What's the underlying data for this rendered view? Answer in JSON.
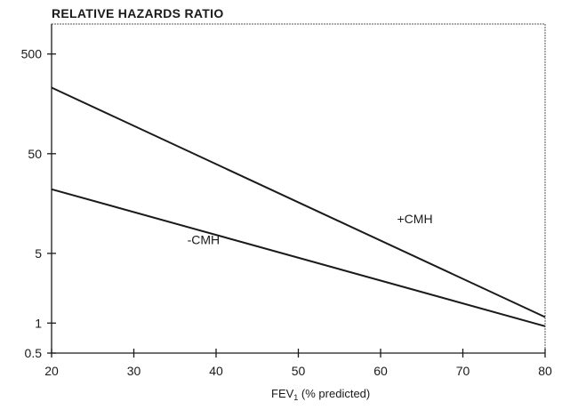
{
  "chart_data": {
    "type": "line",
    "title": "RELATIVE HAZARDS RATIO",
    "xlabel_main": "FEV",
    "xlabel_sub": "1",
    "xlabel_rest": " (% predicted)",
    "x_ticks": [
      20,
      30,
      40,
      50,
      60,
      70,
      80
    ],
    "xlim": [
      20,
      80
    ],
    "y_scale": "log",
    "y_ticks": [
      {
        "value": 0.5,
        "label": "0.5"
      },
      {
        "value": 1,
        "label": "1"
      },
      {
        "value": 5,
        "label": "5"
      },
      {
        "value": 50,
        "label": "50"
      },
      {
        "value": 500,
        "label": "500"
      }
    ],
    "ylim": [
      0.5,
      1000
    ],
    "grid": false,
    "series": [
      {
        "name": "+CMH",
        "x": [
          20,
          80
        ],
        "y": [
          230,
          1.15
        ]
      },
      {
        "name": "-CMH",
        "x": [
          20,
          80
        ],
        "y": [
          22,
          0.93
        ]
      }
    ],
    "annotations": [
      {
        "text": "+CMH",
        "x": 62,
        "y": 10
      },
      {
        "text": "-CMH",
        "x": 36.5,
        "y": 6.2
      }
    ]
  }
}
